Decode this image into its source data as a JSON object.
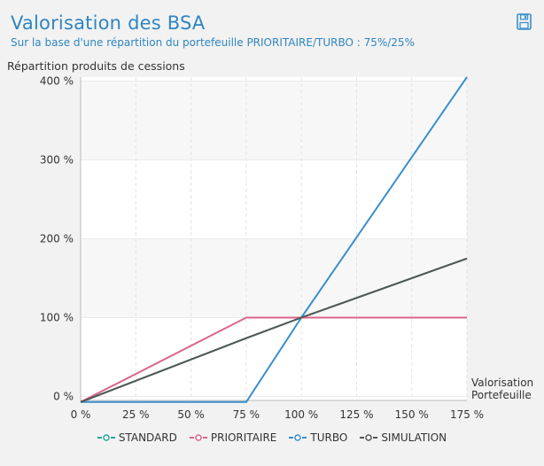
{
  "header": {
    "title": "Valorisation des BSA",
    "subtitle": "Sur la base d'une répartition du portefeuille PRIORITAIRE/TURBO : 75%/25%"
  },
  "colors": {
    "title": "#2e86c1",
    "standard": "#26a69a",
    "prioritaire": "#d9668a",
    "turbo": "#3a8fcb",
    "simulation": "#555555"
  },
  "chart_data": {
    "type": "line",
    "title": "Valorisation des BSA",
    "ylabel": "Répartition produits de cessions",
    "xlabel_lines": [
      "Valorisation",
      "Portefeuille"
    ],
    "xlim": [
      0,
      175
    ],
    "ylim": [
      -5,
      405
    ],
    "x_ticks": [
      0,
      25,
      50,
      75,
      100,
      125,
      150,
      175
    ],
    "x_tick_labels": [
      "0 %",
      "25 %",
      "50 %",
      "75 %",
      "100 %",
      "125 %",
      "150 %",
      "175 %"
    ],
    "y_ticks": [
      0,
      100,
      200,
      300,
      400
    ],
    "y_tick_labels": [
      "0 %",
      "100 %",
      "200 %",
      "300 %",
      "400 %"
    ],
    "series": [
      {
        "name": "STANDARD",
        "color_key": "standard",
        "x": [
          0,
          75,
          100,
          175
        ],
        "y": [
          -7,
          74,
          100,
          175
        ]
      },
      {
        "name": "PRIORITAIRE",
        "color_key": "prioritaire",
        "x": [
          0,
          75,
          100,
          175
        ],
        "y": [
          -7,
          100,
          100,
          100
        ]
      },
      {
        "name": "TURBO",
        "color_key": "turbo",
        "x": [
          0,
          75,
          100,
          175
        ],
        "y": [
          -7,
          -7,
          100,
          405
        ]
      },
      {
        "name": "SIMULATION",
        "color_key": "simulation",
        "x": [
          0,
          75,
          100,
          175
        ],
        "y": [
          -7,
          74,
          100,
          175
        ]
      }
    ]
  }
}
